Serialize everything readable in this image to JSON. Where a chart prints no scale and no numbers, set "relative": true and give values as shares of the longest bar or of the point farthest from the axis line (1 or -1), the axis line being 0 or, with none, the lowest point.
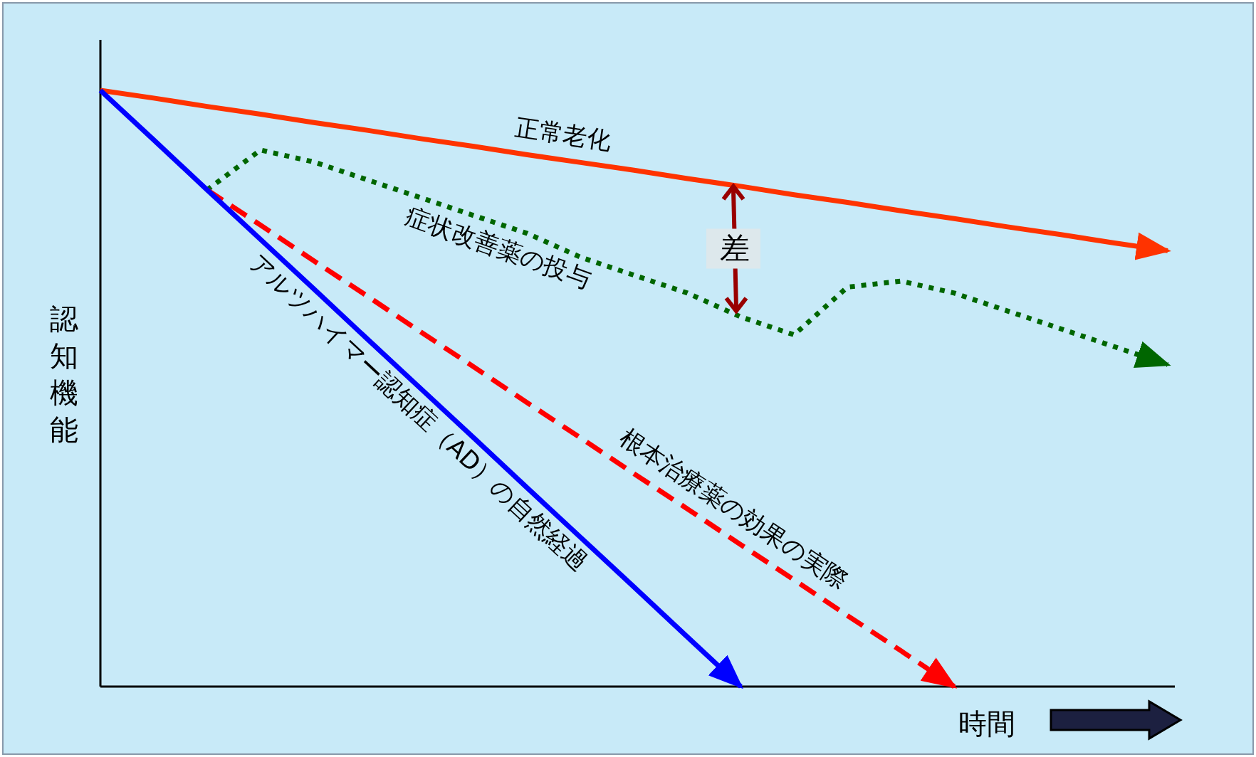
{
  "chart_data": {
    "type": "line",
    "relative": true,
    "xlabel": "時間",
    "ylabel": "認知機能",
    "categories": [
      null,
      null,
      null,
      null,
      null,
      null,
      null,
      null,
      null,
      null,
      null,
      null,
      null,
      null,
      null,
      null,
      null,
      null,
      null,
      null,
      null
    ],
    "series": [
      {
        "name": "正常老化",
        "color": "#ff3300",
        "line_style": "solid",
        "values": [
          1,
          0.987,
          0.973,
          0.96,
          0.946,
          0.933,
          0.919,
          0.906,
          0.892,
          0.879,
          0.866,
          0.852,
          0.839,
          0.825,
          0.812,
          0.798,
          0.785,
          0.771,
          0.758,
          0.744,
          0.731
        ]
      },
      {
        "name": "症状改善薬の投与",
        "color": "#006600",
        "line_style": "dotted",
        "values": [
          null,
          null,
          0.833,
          0.9,
          0.88,
          0.85,
          0.82,
          0.79,
          0.76,
          0.72,
          0.69,
          0.66,
          0.62,
          0.59,
          0.67,
          0.68,
          0.66,
          0.63,
          0.6,
          0.57,
          0.54
        ]
      },
      {
        "name": "根本治療薬の効果の実際",
        "color": "#ff0000",
        "line_style": "dashed",
        "values": [
          null,
          null,
          0.833,
          0.774,
          0.714,
          0.655,
          0.595,
          0.536,
          0.476,
          0.417,
          0.357,
          0.298,
          0.238,
          0.179,
          0.119,
          0.06,
          0,
          null,
          null,
          null,
          null
        ]
      },
      {
        "name": "アルツハイマー認知症（AD）の自然経過",
        "color": "#0000ff",
        "line_style": "solid",
        "values": [
          1,
          0.917,
          0.833,
          0.75,
          0.667,
          0.583,
          0.5,
          0.417,
          0.333,
          0.25,
          0.167,
          0.083,
          0,
          null,
          null,
          null,
          null,
          null,
          null,
          null,
          null
        ]
      }
    ],
    "annotations": [
      "差"
    ]
  }
}
